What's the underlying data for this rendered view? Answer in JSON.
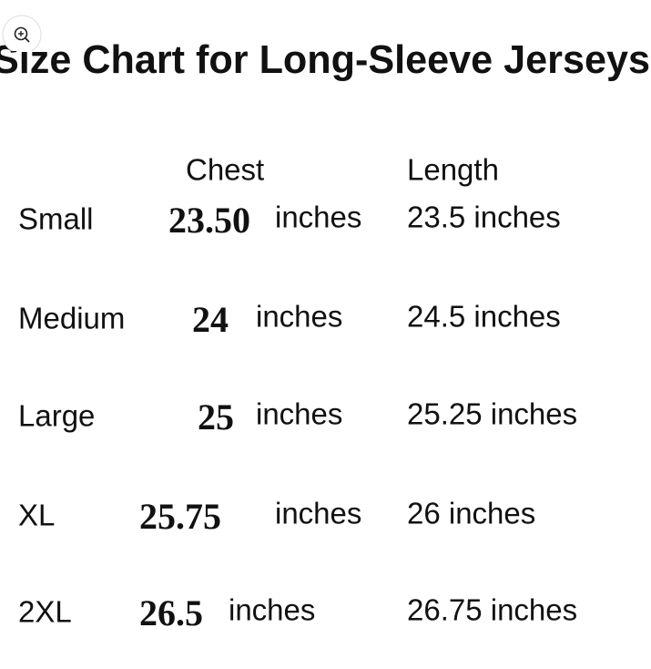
{
  "header": {
    "title": "Size Chart for Long-Sleeve Jerseys"
  },
  "table": {
    "columns": [
      "Chest",
      "Length"
    ],
    "rows": [
      {
        "size": "Small",
        "chest_number": "23.50",
        "chest_unit": "inches",
        "length": "23.5 inches"
      },
      {
        "size": "Medium",
        "chest_number": "24",
        "chest_unit": "inches",
        "length": "24.5 inches"
      },
      {
        "size": "Large",
        "chest_number": "25",
        "chest_unit": "inches",
        "length": "25.25 inches"
      },
      {
        "size": "XL",
        "chest_number": "25.75",
        "chest_unit": "inches",
        "length": "26 inches"
      },
      {
        "size": "2XL",
        "chest_number": "26.5",
        "chest_unit": "inches",
        "length": "26.75 inches"
      }
    ]
  }
}
